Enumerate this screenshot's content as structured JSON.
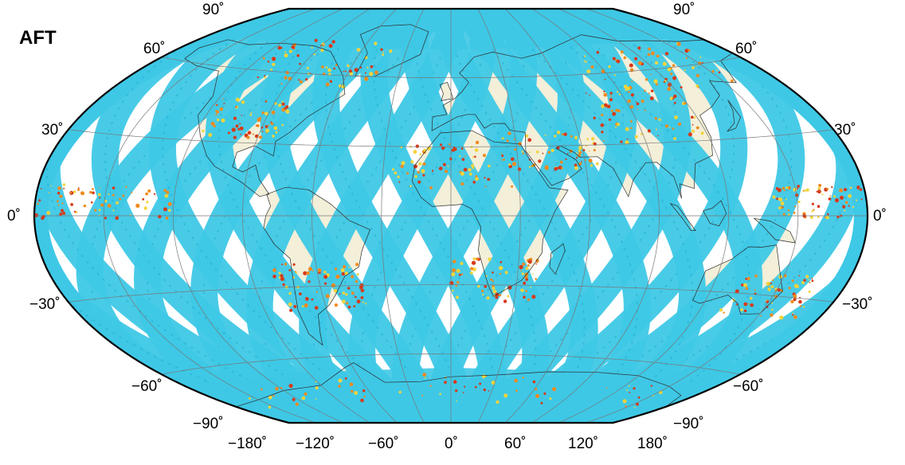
{
  "title": "AFT",
  "lat_labels": {
    "p90": "90˚",
    "p60": "60˚",
    "p30": "30˚",
    "zero": "0˚",
    "m30": "−30˚",
    "m60": "−60˚",
    "m90": "−90˚"
  },
  "lon_labels": [
    "−180˚",
    "−120˚",
    "−60˚",
    "0˚",
    "60˚",
    "120˚",
    "180˚"
  ],
  "projection": "Winkel Tripel",
  "graticule_step_deg": 30,
  "colors": {
    "ocean_blank": "#ffffff",
    "land": "#f3efd9",
    "swath": "#3ec8e6",
    "swath_dark": "#1fa9cf",
    "hot_red": "#d63a1a",
    "hot_orange": "#f08a1c",
    "hot_yellow": "#f4d43a",
    "grid": "#777777",
    "coast": "#2a2a2a",
    "frame": "#000000"
  }
}
